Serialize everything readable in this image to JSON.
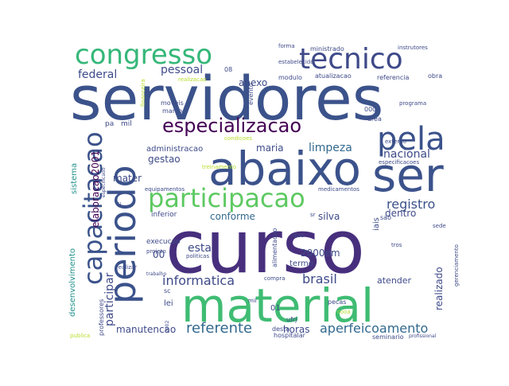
{
  "words": [
    {
      "text": "curso",
      "color": "#472f7d"
    },
    {
      "text": "servidores",
      "color": "#3b528b"
    },
    {
      "text": "material",
      "color": "#3fbc73"
    },
    {
      "text": "periodo",
      "color": "#3b528b"
    },
    {
      "text": "abaixo",
      "color": "#3b528b"
    },
    {
      "text": "ser",
      "color": "#3b528b"
    },
    {
      "text": "participacao",
      "color": "#5ec962"
    },
    {
      "text": "pela",
      "color": "#3b528b"
    },
    {
      "text": "capacitacao",
      "color": "#3b528b"
    },
    {
      "text": "tecnico",
      "color": "#3e4a89"
    },
    {
      "text": "congresso",
      "color": "#35b779"
    },
    {
      "text": "especializacao",
      "color": "#440154"
    },
    {
      "text": "referente",
      "color": "#31688e"
    },
    {
      "text": "aperfeicoamento",
      "color": "#31688e"
    },
    {
      "text": "informatica",
      "color": "#3e4a89"
    },
    {
      "text": "brasil",
      "color": "#3e4a89"
    },
    {
      "text": "registro",
      "color": "#3b528b"
    },
    {
      "text": "federal",
      "color": "#3e4a89"
    },
    {
      "text": "pessoal",
      "color": "#3e4a89"
    },
    {
      "text": "limpeza",
      "color": "#31688e"
    },
    {
      "text": "maria",
      "color": "#3e4a89"
    },
    {
      "text": "nacional",
      "color": "#3e4a89"
    },
    {
      "text": "participar",
      "color": "#3e4a89"
    },
    {
      "text": "manutencao",
      "color": "#3e4a89"
    },
    {
      "text": "esta",
      "color": "#3e4a89"
    },
    {
      "text": "2000em",
      "color": "#3e4a89"
    },
    {
      "text": "conforme",
      "color": "#31688e"
    },
    {
      "text": "silva",
      "color": "#3e4a89"
    },
    {
      "text": "dentro",
      "color": "#3e4a89"
    },
    {
      "text": "realizado",
      "color": "#3e4a89"
    },
    {
      "text": "gestao",
      "color": "#3e4a89"
    },
    {
      "text": "mater",
      "color": "#3e4a89"
    },
    {
      "text": "elaboracao2001",
      "color": "#440154"
    },
    {
      "text": "anexo",
      "color": "#3e4a89"
    },
    {
      "text": "horas",
      "color": "#3e4a89"
    },
    {
      "text": "atender",
      "color": "#3e4a89"
    },
    {
      "text": "administracao",
      "color": "#3e4a89"
    },
    {
      "text": "00",
      "color": "#3e4a89"
    },
    {
      "text": "desenvolvimento",
      "color": "#21918c"
    },
    {
      "text": "sistema",
      "color": "#21918c"
    },
    {
      "text": "termo",
      "color": "#3e4a89"
    },
    {
      "text": "inferior",
      "color": "#3e4a89"
    },
    {
      "text": "execucao",
      "color": "#3e4a89"
    },
    {
      "text": "lei",
      "color": "#3e4a89"
    },
    {
      "text": "01",
      "color": "#3e4a89"
    },
    {
      "text": "pa",
      "color": "#3e4a89"
    },
    {
      "text": "mil",
      "color": "#3e4a89"
    },
    {
      "text": "moveis",
      "color": "#3e4a89"
    },
    {
      "text": "marco",
      "color": "#3e4a89"
    },
    {
      "text": "modulo",
      "color": "#3e4a89"
    },
    {
      "text": "atualizacao",
      "color": "#3e4a89"
    },
    {
      "text": "evento",
      "color": "#3e4a89"
    },
    {
      "text": "ministrado",
      "color": "#3e4a89"
    },
    {
      "text": "forma",
      "color": "#3e4a89"
    },
    {
      "text": "instrutores",
      "color": "#3e4a89"
    },
    {
      "text": "referencia",
      "color": "#3e4a89"
    },
    {
      "text": "obra",
      "color": "#3e4a89"
    },
    {
      "text": "estabelecido",
      "color": "#3e4a89"
    },
    {
      "text": "realizacao",
      "color": "#b5de2b"
    },
    {
      "text": "08",
      "color": "#3e4a89"
    },
    {
      "text": "programa",
      "color": "#3e4a89"
    },
    {
      "text": "area",
      "color": "#3e4a89"
    },
    {
      "text": "000",
      "color": "#3e4a89"
    },
    {
      "text": "condicoes",
      "color": "#b5de2b"
    },
    {
      "text": "externo",
      "color": "#3e4a89"
    },
    {
      "text": "especificacoes",
      "color": "#3e4a89"
    },
    {
      "text": "medicamentos",
      "color": "#3e4a89"
    },
    {
      "text": "equipamentos",
      "color": "#3e4a89"
    },
    {
      "text": "treinamento",
      "color": "#b5de2b"
    },
    {
      "text": "financeira",
      "color": "#b5de2b"
    },
    {
      "text": "especificado",
      "color": "#3e4a89"
    },
    {
      "text": "ii",
      "color": "#3e4a89"
    },
    {
      "text": "alimentacao",
      "color": "#3e4a89"
    },
    {
      "text": "iais",
      "color": "#3e4a89"
    },
    {
      "text": "sao",
      "color": "#3e4a89"
    },
    {
      "text": "sede",
      "color": "#3e4a89"
    },
    {
      "text": "dias",
      "color": "#3e4a89"
    },
    {
      "text": "tros",
      "color": "#3e4a89"
    },
    {
      "text": "gerenciamento",
      "color": "#3e4a89"
    },
    {
      "text": "politicas",
      "color": "#3e4a89"
    },
    {
      "text": "projeto",
      "color": "#3e4a89"
    },
    {
      "text": "trabalho",
      "color": "#3e4a89"
    },
    {
      "text": "realizar",
      "color": "#3e4a89"
    },
    {
      "text": "compra",
      "color": "#3e4a89"
    },
    {
      "text": "professores",
      "color": "#3e4a89"
    },
    {
      "text": "sc",
      "color": "#3e4a89"
    },
    {
      "text": "desta",
      "color": "#3e4a89"
    },
    {
      "text": "ufrj",
      "color": "#3e4a89"
    },
    {
      "text": "pecas",
      "color": "#3e4a89"
    },
    {
      "text": "hospitalar",
      "color": "#3e4a89"
    },
    {
      "text": "seminario",
      "color": "#3e4a89"
    },
    {
      "text": "profissional",
      "color": "#3e4a89"
    },
    {
      "text": "2002",
      "color": "#3e4a89"
    },
    {
      "text": "publica",
      "color": "#b5de2b"
    },
    {
      "text": "cooa",
      "color": "#b5de2b"
    },
    {
      "text": "mil",
      "color": "#3e4a89"
    },
    {
      "text": "sr",
      "color": "#3e4a89"
    }
  ]
}
